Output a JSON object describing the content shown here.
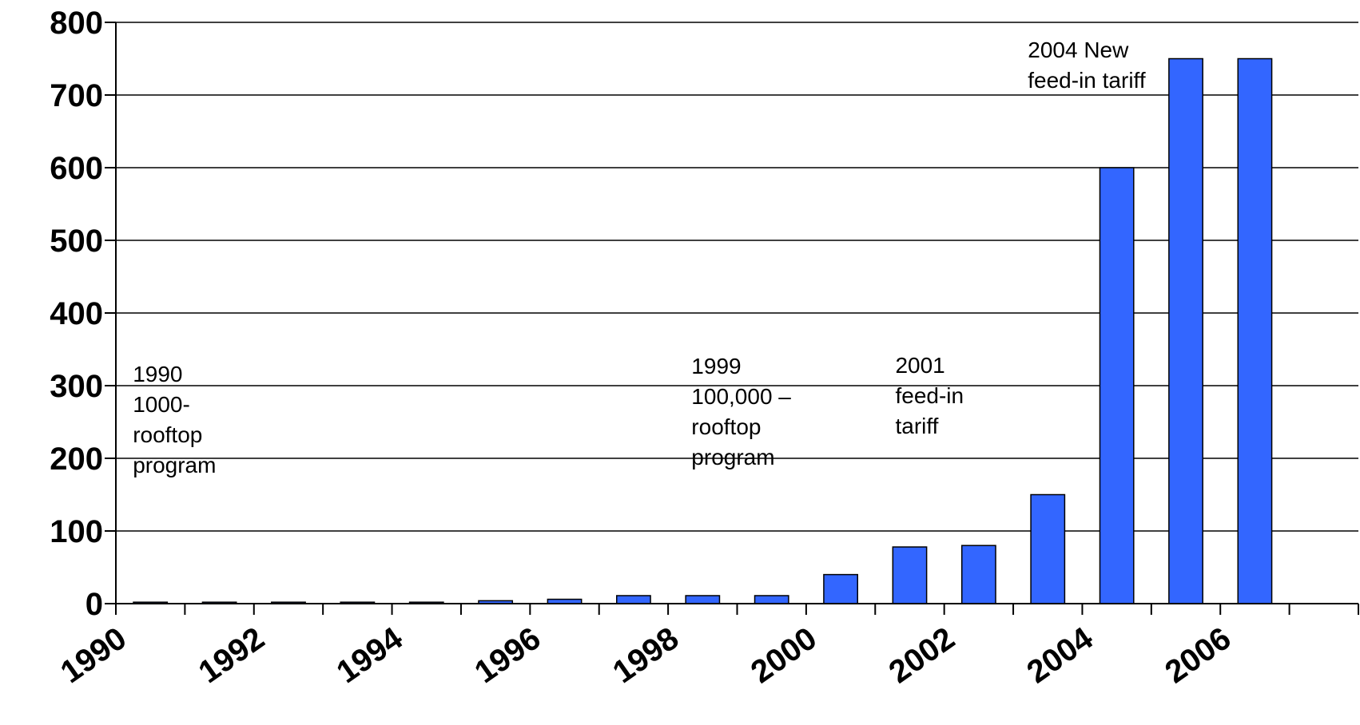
{
  "chart_data": {
    "type": "bar",
    "categories": [
      "1990",
      "1991",
      "1992",
      "1993",
      "1994",
      "1995",
      "1996",
      "1997",
      "1998",
      "1999",
      "2000",
      "2001",
      "2002",
      "2003",
      "2004",
      "2005",
      "2006",
      "2007"
    ],
    "values": [
      2,
      2,
      2,
      2,
      2,
      4,
      6,
      11,
      11,
      11,
      40,
      78,
      80,
      150,
      600,
      750,
      750,
      0
    ],
    "x_tick_labels": [
      "1990",
      "1992",
      "1994",
      "1996",
      "1998",
      "2000",
      "2002",
      "2004",
      "2006"
    ],
    "y_tick_labels": [
      "0",
      "100",
      "200",
      "300",
      "400",
      "500",
      "600",
      "700",
      "800"
    ],
    "ylim": [
      0,
      800
    ],
    "grid": true,
    "bar_color": "#3366ff",
    "title": "",
    "xlabel": "",
    "ylabel": "",
    "annotations": [
      {
        "category": "1990",
        "lines": [
          "1990",
          "1000-",
          "rooftop",
          "program"
        ]
      },
      {
        "category": "1998",
        "lines": [
          "1999",
          "100,000 –",
          "rooftop",
          "program"
        ]
      },
      {
        "category": "2001",
        "lines": [
          "2001",
          "feed-in",
          "tariff"
        ]
      },
      {
        "category": "2003",
        "lines": [
          "2004 New",
          "feed-in tariff"
        ]
      }
    ]
  }
}
